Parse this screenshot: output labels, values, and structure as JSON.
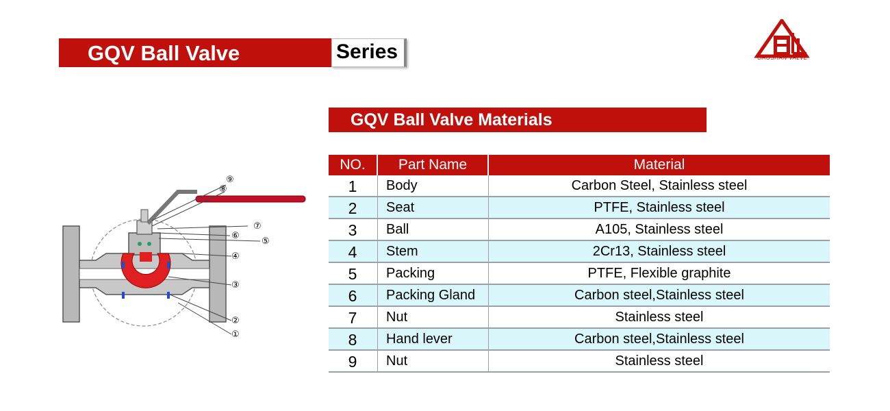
{
  "header": {
    "title": "GQV Ball Valve",
    "series_label": "Series"
  },
  "logo": {
    "text": "GAOSHAN VALVE",
    "color": "#c0100c"
  },
  "section": {
    "title": "GQV Ball Valve Materials"
  },
  "table": {
    "headers": {
      "no": "NO.",
      "part": "Part  Name",
      "material": "Material"
    },
    "rows": [
      {
        "no": "1",
        "part": "Body",
        "material": "Carbon Steel, Stainless steel"
      },
      {
        "no": "2",
        "part": "Seat",
        "material": "PTFE, Stainless steel"
      },
      {
        "no": "3",
        "part": "Ball",
        "material": "A105, Stainless steel"
      },
      {
        "no": "4",
        "part": "Stem",
        "material": "2Cr13, Stainless steel"
      },
      {
        "no": "5",
        "part": "Packing",
        "material": "PTFE, Flexible graphite"
      },
      {
        "no": "6",
        "part": "Packing Gland",
        "material": "Carbon steel,Stainless steel"
      },
      {
        "no": "7",
        "part": "Nut",
        "material": "Stainless steel"
      },
      {
        "no": "8",
        "part": "Hand lever",
        "material": "Carbon steel,Stainless steel"
      },
      {
        "no": "9",
        "part": "Nut",
        "material": "Stainless steel"
      }
    ]
  },
  "diagram": {
    "callouts": [
      "①",
      "②",
      "③",
      "④",
      "⑤",
      "⑥",
      "⑦",
      "⑧",
      "⑨"
    ]
  },
  "colors": {
    "accent_red": "#c0100c",
    "alt_row": "#d9f7fa",
    "ball_red": "#e02020"
  }
}
